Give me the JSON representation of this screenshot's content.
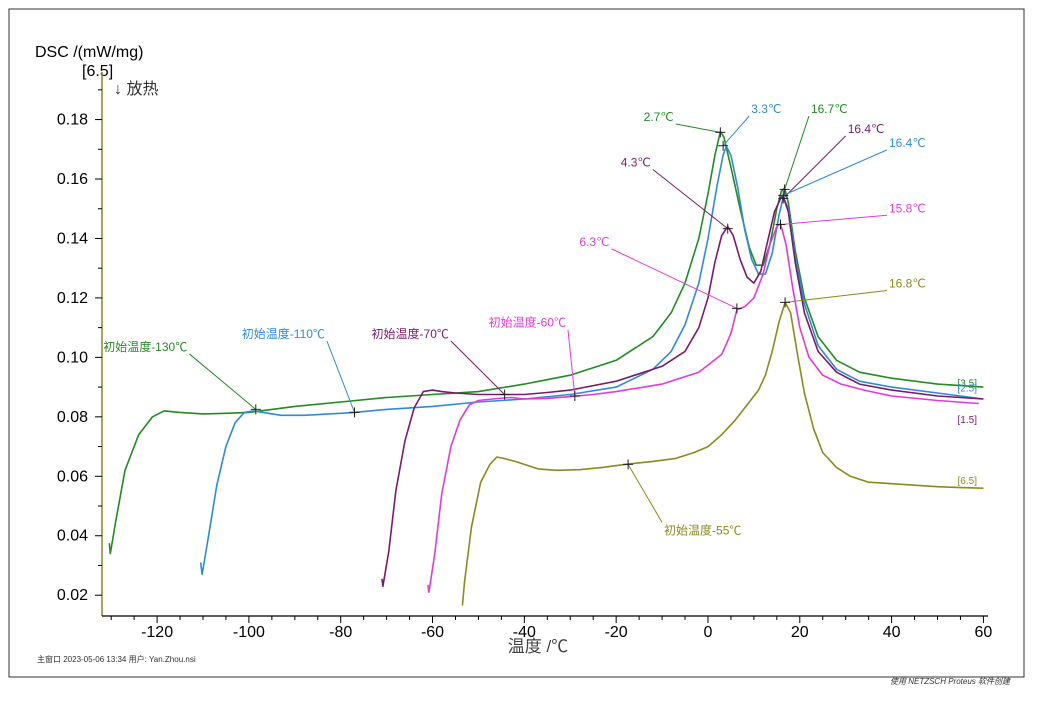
{
  "chart_data": {
    "type": "line",
    "ylabel": "DSC /(mW/mg)",
    "y_tag": "[6.5]",
    "exo_label": "↓ 放热",
    "xlabel": "温度 /℃",
    "xlim": [
      -132,
      61
    ],
    "ylim": [
      0.013,
      0.196
    ],
    "x_ticks": [
      "-120",
      "-100",
      "-80",
      "-60",
      "-40",
      "-20",
      "0",
      "20",
      "40",
      "60"
    ],
    "x_tick_values": [
      -120,
      -100,
      -80,
      -60,
      -40,
      -20,
      0,
      20,
      40,
      60
    ],
    "y_ticks": [
      "0.02",
      "0.04",
      "0.06",
      "0.08",
      "0.10",
      "0.12",
      "0.14",
      "0.16",
      "0.18"
    ],
    "y_tick_values": [
      0.02,
      0.04,
      0.06,
      0.08,
      0.1,
      0.12,
      0.14,
      0.16,
      0.18
    ],
    "grid": false,
    "series": [
      {
        "id": "s130",
        "color": "#228B22",
        "x": [
          -130.4,
          -130.2,
          -129.0,
          -127.0,
          -124.0,
          -121.0,
          -118.5,
          -115.0,
          -110.0,
          -105.0,
          -100.0,
          -95.0,
          -90.0,
          -80.0,
          -70.0,
          -60.0,
          -50.0,
          -40.0,
          -30.0,
          -20.0,
          -12.0,
          -8.0,
          -5.0,
          -2.0,
          0.0,
          1.5,
          2.7,
          3.5,
          5.0,
          7.0,
          9.0,
          10.5,
          12.0,
          13.5,
          15.0,
          16.0,
          16.7,
          17.5,
          19.0,
          21.0,
          24.0,
          28.0,
          33.0,
          40.0,
          50.0,
          60.0
        ],
        "y": [
          0.0375,
          0.034,
          0.045,
          0.062,
          0.074,
          0.08,
          0.082,
          0.0815,
          0.081,
          0.0812,
          0.0815,
          0.0825,
          0.0835,
          0.085,
          0.0865,
          0.0875,
          0.0885,
          0.091,
          0.094,
          0.099,
          0.107,
          0.115,
          0.125,
          0.14,
          0.155,
          0.168,
          0.176,
          0.174,
          0.164,
          0.15,
          0.137,
          0.131,
          0.131,
          0.138,
          0.15,
          0.156,
          0.157,
          0.152,
          0.136,
          0.12,
          0.107,
          0.099,
          0.095,
          0.093,
          0.091,
          0.09
        ]
      },
      {
        "id": "s110",
        "color": "#2E8BD8",
        "x": [
          -110.5,
          -110.2,
          -109.0,
          -107.0,
          -105.0,
          -103.0,
          -101.0,
          -99.0,
          -97.0,
          -93.0,
          -88.0,
          -80.0,
          -77.0,
          -70.0,
          -60.0,
          -50.0,
          -40.0,
          -30.0,
          -20.0,
          -12.0,
          -8.0,
          -5.0,
          -2.0,
          0.0,
          2.0,
          3.3,
          4.0,
          5.0,
          6.5,
          8.0,
          9.5,
          11.0,
          12.5,
          14.0,
          15.5,
          16.4,
          17.5,
          19.0,
          21.0,
          24.0,
          28.0,
          33.0,
          40.0,
          50.0,
          60.0
        ],
        "y": [
          0.031,
          0.027,
          0.038,
          0.057,
          0.07,
          0.078,
          0.0815,
          0.082,
          0.0815,
          0.0805,
          0.0805,
          0.0812,
          0.0815,
          0.0825,
          0.0835,
          0.085,
          0.086,
          0.0875,
          0.09,
          0.096,
          0.102,
          0.111,
          0.125,
          0.14,
          0.158,
          0.168,
          0.171,
          0.168,
          0.157,
          0.143,
          0.133,
          0.128,
          0.128,
          0.135,
          0.148,
          0.154,
          0.15,
          0.134,
          0.118,
          0.104,
          0.096,
          0.092,
          0.09,
          0.088,
          0.086
        ]
      },
      {
        "id": "s70",
        "color": "#7B1A6E",
        "x": [
          -71.0,
          -70.8,
          -69.5,
          -68.0,
          -66.0,
          -64.0,
          -62.0,
          -60.0,
          -58.0,
          -55.0,
          -50.0,
          -45.0,
          -40.0,
          -35.0,
          -30.0,
          -20.0,
          -10.0,
          -5.0,
          -2.0,
          0.0,
          1.5,
          3.0,
          4.3,
          5.5,
          7.0,
          8.5,
          10.0,
          11.5,
          13.0,
          14.5,
          16.0,
          16.4,
          17.5,
          19.0,
          21.0,
          24.0,
          28.0,
          33.0,
          40.0,
          50.0,
          60.0
        ],
        "y": [
          0.0255,
          0.023,
          0.035,
          0.055,
          0.072,
          0.083,
          0.0885,
          0.089,
          0.0885,
          0.088,
          0.0875,
          0.0875,
          0.0875,
          0.0882,
          0.089,
          0.092,
          0.097,
          0.102,
          0.11,
          0.12,
          0.132,
          0.141,
          0.144,
          0.141,
          0.133,
          0.127,
          0.125,
          0.129,
          0.139,
          0.149,
          0.154,
          0.154,
          0.149,
          0.132,
          0.115,
          0.102,
          0.095,
          0.091,
          0.089,
          0.087,
          0.086
        ]
      },
      {
        "id": "s60",
        "color": "#E03ADC",
        "x": [
          -61.0,
          -60.8,
          -59.5,
          -58.0,
          -56.0,
          -54.0,
          -52.0,
          -50.0,
          -47.0,
          -43.0,
          -40.0,
          -35.0,
          -30.0,
          -25.0,
          -20.0,
          -10.0,
          -2.0,
          3.0,
          5.0,
          6.3,
          8.0,
          10.0,
          12.0,
          13.5,
          15.0,
          15.8,
          17.0,
          18.5,
          20.0,
          22.0,
          25.0,
          29.0,
          34.0,
          40.0,
          50.0,
          59.0
        ],
        "y": [
          0.0235,
          0.021,
          0.034,
          0.054,
          0.07,
          0.079,
          0.084,
          0.0855,
          0.086,
          0.0865,
          0.086,
          0.0862,
          0.0868,
          0.0875,
          0.0885,
          0.091,
          0.095,
          0.101,
          0.108,
          0.116,
          0.117,
          0.12,
          0.128,
          0.138,
          0.144,
          0.145,
          0.138,
          0.123,
          0.11,
          0.1,
          0.094,
          0.091,
          0.089,
          0.087,
          0.0855,
          0.0845
        ]
      },
      {
        "id": "s55",
        "color": "#8B8B1A",
        "x": [
          -53.5,
          -53.0,
          -51.5,
          -49.5,
          -47.5,
          -46.0,
          -44.5,
          -42.0,
          -40.0,
          -37.0,
          -33.0,
          -28.0,
          -23.0,
          -17.0,
          -12.0,
          -7.0,
          -3.0,
          0.0,
          3.0,
          6.0,
          9.0,
          11.0,
          12.5,
          14.0,
          15.5,
          16.8,
          18.0,
          19.5,
          21.0,
          23.0,
          25.0,
          28.0,
          31.0,
          35.0,
          40.0,
          45.0,
          50.0,
          55.0,
          60.0
        ],
        "y": [
          0.0165,
          0.025,
          0.043,
          0.058,
          0.064,
          0.0665,
          0.066,
          0.065,
          0.064,
          0.0625,
          0.062,
          0.0622,
          0.063,
          0.0642,
          0.065,
          0.066,
          0.068,
          0.07,
          0.074,
          0.079,
          0.085,
          0.089,
          0.094,
          0.102,
          0.112,
          0.1185,
          0.115,
          0.101,
          0.088,
          0.076,
          0.068,
          0.063,
          0.06,
          0.058,
          0.0575,
          0.057,
          0.0565,
          0.0562,
          0.056
        ]
      }
    ],
    "annotations": [
      {
        "id": "a130",
        "text": "初始温度-130℃",
        "color": "#228B22",
        "px": -98.5,
        "py": 0.0825,
        "lx": -113.0,
        "ly": 0.1012
      },
      {
        "id": "a110",
        "text": "初始温度-110℃",
        "color": "#2E8BD8",
        "px": -77.0,
        "py": 0.0815,
        "lx": -83.0,
        "ly": 0.1055
      },
      {
        "id": "a70",
        "text": "初始温度-70℃",
        "color": "#7B1A6E",
        "px": -44.3,
        "py": 0.0875,
        "lx": -56.0,
        "ly": 0.1055
      },
      {
        "id": "a60",
        "text": "初始温度-60℃",
        "color": "#E03ADC",
        "px": -29.0,
        "py": 0.087,
        "lx": -30.5,
        "ly": 0.1093
      },
      {
        "id": "a55",
        "text": "初始温度-55℃",
        "color": "#8B8B1A",
        "px": -17.4,
        "py": 0.064,
        "lx": -10.0,
        "ly": 0.0445
      },
      {
        "id": "p130a",
        "text": "2.7℃",
        "color": "#228B22",
        "px": 2.7,
        "py": 0.1757,
        "lx": -7.0,
        "ly": 0.1785
      },
      {
        "id": "p110a",
        "text": "3.3℃",
        "color": "#2E8BD8",
        "px": 3.3,
        "py": 0.1712,
        "lx": 9.0,
        "ly": 0.1812
      },
      {
        "id": "p70a",
        "text": "4.3℃",
        "color": "#7B1A6E",
        "px": 4.3,
        "py": 0.1433,
        "lx": -12.0,
        "ly": 0.1632
      },
      {
        "id": "p60a",
        "text": "6.3℃",
        "color": "#E03ADC",
        "px": 6.3,
        "py": 0.1165,
        "lx": -21.0,
        "ly": 0.1365
      },
      {
        "id": "p130b",
        "text": "16.7℃",
        "color": "#228B22",
        "px": 16.7,
        "py": 0.1565,
        "lx": 22.0,
        "ly": 0.1812
      },
      {
        "id": "p70b",
        "text": "16.4℃",
        "color": "#7B1A6E",
        "px": 16.4,
        "py": 0.1535,
        "lx": 30.0,
        "ly": 0.1745
      },
      {
        "id": "p110b",
        "text": "16.4℃",
        "color": "#2E8BD8",
        "px": 16.4,
        "py": 0.1545,
        "lx": 39.0,
        "ly": 0.1698
      },
      {
        "id": "p60b",
        "text": "15.8℃",
        "color": "#E03ADC",
        "px": 15.8,
        "py": 0.1447,
        "lx": 39.0,
        "ly": 0.1478
      },
      {
        "id": "p55",
        "text": "16.8℃",
        "color": "#8B8B1A",
        "px": 16.8,
        "py": 0.1185,
        "lx": 39.0,
        "ly": 0.1225
      }
    ],
    "end_labels": [
      {
        "text": "[3.5]",
        "color": "#228B22",
        "y": 0.0915
      },
      {
        "text": "[2.5]",
        "color": "#2E8BD8",
        "y": 0.0898
      },
      {
        "text": "[1.5]",
        "color": "#7B1A6E",
        "y": 0.0793
      },
      {
        "text": "[6.5]",
        "color": "#8B8B1A",
        "y": 0.0588
      }
    ]
  },
  "footer": {
    "left": "主窗口   2023-05-06 13:34   用户: Yan.Zhou.nsi",
    "right": "使用 NETZSCH Proteus 软件创建"
  }
}
